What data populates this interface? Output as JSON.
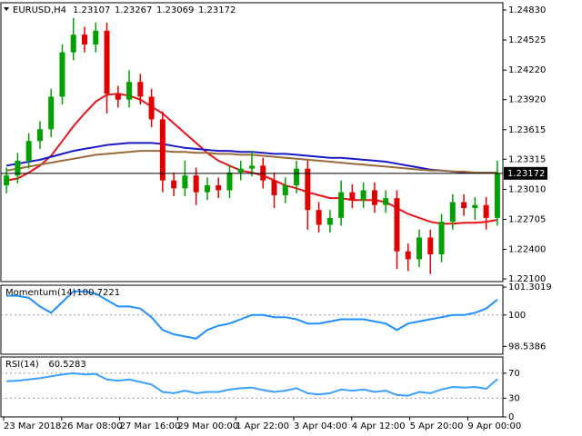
{
  "chart_data": [
    {
      "type": "candlestick",
      "symbol": "EURUSD,H4",
      "header_ohlc": [
        1.23107,
        1.23267,
        1.23069,
        1.23172
      ],
      "up_color": "#00a000",
      "down_color": "#e00000",
      "open": [
        1.2305,
        1.2315,
        1.233,
        1.235,
        1.2362,
        1.2395,
        1.244,
        1.2458,
        1.2448,
        1.2462,
        1.2398,
        1.2392,
        1.241,
        1.2395,
        1.2372,
        1.231,
        1.2302,
        1.2315,
        1.2298,
        1.2305,
        1.23,
        1.2318,
        1.2322,
        1.2325,
        1.231,
        1.2295,
        1.2305,
        1.2322,
        1.228,
        1.2265,
        1.2272,
        1.2298,
        1.229,
        1.23,
        1.2285,
        1.2292,
        1.2238,
        1.223,
        1.2252,
        1.2235,
        1.2268,
        1.2288,
        1.2282,
        1.2285,
        1.2272
      ],
      "high": [
        1.2323,
        1.2338,
        1.2358,
        1.237,
        1.2403,
        1.2448,
        1.2475,
        1.2466,
        1.247,
        1.247,
        1.2406,
        1.2422,
        1.2418,
        1.2403,
        1.238,
        1.2318,
        1.233,
        1.2323,
        1.2313,
        1.2313,
        1.2326,
        1.233,
        1.234,
        1.2333,
        1.2318,
        1.2313,
        1.233,
        1.233,
        1.2288,
        1.228,
        1.231,
        1.2306,
        1.2308,
        1.2308,
        1.23,
        1.23,
        1.2246,
        1.226,
        1.226,
        1.2276,
        1.2296,
        1.2296,
        1.2293,
        1.2293,
        1.233
      ],
      "low": [
        1.2297,
        1.2307,
        1.2322,
        1.2342,
        1.2354,
        1.2387,
        1.2432,
        1.244,
        1.244,
        1.2378,
        1.2384,
        1.2384,
        1.2387,
        1.2364,
        1.2298,
        1.2294,
        1.2294,
        1.2285,
        1.229,
        1.2292,
        1.2292,
        1.231,
        1.2314,
        1.2302,
        1.2282,
        1.2287,
        1.2297,
        1.226,
        1.2257,
        1.2257,
        1.2264,
        1.2282,
        1.2282,
        1.2277,
        1.2277,
        1.222,
        1.2218,
        1.2222,
        1.2215,
        1.2227,
        1.226,
        1.2274,
        1.227,
        1.226,
        1.2264
      ],
      "close": [
        1.2315,
        1.233,
        1.235,
        1.2362,
        1.2395,
        1.244,
        1.2458,
        1.2448,
        1.2462,
        1.2398,
        1.2392,
        1.241,
        1.2395,
        1.2372,
        1.231,
        1.2302,
        1.2315,
        1.2298,
        1.2305,
        1.23,
        1.2318,
        1.2322,
        1.2325,
        1.231,
        1.2295,
        1.2305,
        1.2322,
        1.228,
        1.2265,
        1.2272,
        1.2298,
        1.229,
        1.23,
        1.2285,
        1.2292,
        1.2238,
        1.223,
        1.2252,
        1.2235,
        1.2268,
        1.2288,
        1.2282,
        1.2285,
        1.2272,
        1.23172
      ],
      "series": [
        {
          "color": "#e8141a",
          "values": [
            1.231,
            1.2312,
            1.2318,
            1.2325,
            1.2335,
            1.235,
            1.2365,
            1.2378,
            1.239,
            1.2397,
            1.2398,
            1.2396,
            1.2392,
            1.2385,
            1.2378,
            1.2368,
            1.2358,
            1.2348,
            1.2338,
            1.233,
            1.2325,
            1.232,
            1.2318,
            1.2315,
            1.231,
            1.2305,
            1.2302,
            1.2298,
            1.2295,
            1.2292,
            1.2292,
            1.229,
            1.229,
            1.229,
            1.2288,
            1.2282,
            1.2276,
            1.2272,
            1.2268,
            1.2266,
            1.2266,
            1.2267,
            1.2267,
            1.2268,
            1.227
          ]
        },
        {
          "color": "#1a1ac8",
          "values": [
            1.2325,
            1.2327,
            1.2329,
            1.2331,
            1.2334,
            1.2337,
            1.234,
            1.2342,
            1.2344,
            1.2346,
            1.2347,
            1.2348,
            1.2348,
            1.2348,
            1.2347,
            1.2345,
            1.2343,
            1.2342,
            1.2341,
            1.234,
            1.234,
            1.2339,
            1.2339,
            1.2338,
            1.2337,
            1.2337,
            1.2336,
            1.2335,
            1.2334,
            1.2333,
            1.2333,
            1.2332,
            1.2331,
            1.233,
            1.2329,
            1.2327,
            1.2325,
            1.2323,
            1.2321,
            1.232,
            1.2319,
            1.2318,
            1.2318,
            1.2318,
            1.2318
          ]
        },
        {
          "color": "#9a6a3a",
          "values": [
            1.232,
            1.2322,
            1.2324,
            1.2326,
            1.2328,
            1.233,
            1.2332,
            1.2334,
            1.2336,
            1.2337,
            1.2338,
            1.2339,
            1.234,
            1.234,
            1.234,
            1.2339,
            1.2339,
            1.2338,
            1.2338,
            1.2337,
            1.2337,
            1.2336,
            1.2336,
            1.2335,
            1.2334,
            1.2333,
            1.2332,
            1.2331,
            1.233,
            1.2329,
            1.2328,
            1.2327,
            1.2326,
            1.2325,
            1.2324,
            1.2323,
            1.2322,
            1.2321,
            1.232,
            1.232,
            1.2319,
            1.2319,
            1.2318,
            1.2318,
            1.2318
          ]
        }
      ],
      "last_price": 1.23172,
      "ylim": [
        1.22073,
        1.24904
      ],
      "yticks": [
        {
          "value": 1.2483,
          "label": "1.24830"
        },
        1.24525,
        {
          "value": 1.2422,
          "label": "1.24220"
        },
        {
          "value": 1.2392,
          "label": "1.23920"
        },
        1.23615,
        1.23315,
        {
          "value": 1.2301,
          "label": "1.23010"
        },
        1.22705,
        {
          "value": 1.224,
          "label": "1.22400"
        },
        {
          "value": 1.221,
          "label": "1.22100"
        }
      ],
      "time_labels": [
        "23 Mar 2018",
        "26 Mar 08:00",
        "27 Mar 16:00",
        "29 Mar 00:00",
        "1 Apr 22:00",
        "3 Apr 04:00",
        "4 Apr 12:00",
        "5 Apr 20:00",
        "9 Apr 00:00"
      ]
    },
    {
      "type": "line",
      "title": "Momentum(14)",
      "color": "#1e90ff",
      "values": [
        100.9,
        100.9,
        100.8,
        100.4,
        100.1,
        100.6,
        101.1,
        101.1,
        101.0,
        100.7,
        100.4,
        100.4,
        100.3,
        99.9,
        99.3,
        99.1,
        99.0,
        98.9,
        99.3,
        99.5,
        99.6,
        99.8,
        100.0,
        100.0,
        99.9,
        99.9,
        99.8,
        99.6,
        99.6,
        99.7,
        99.8,
        99.8,
        99.8,
        99.7,
        99.6,
        99.3,
        99.6,
        99.7,
        99.8,
        99.9,
        100.0,
        100.0,
        100.1,
        100.3,
        100.7221
      ],
      "ylim": [
        98.17,
        101.39
      ],
      "yticks": [
        101.3019,
        100,
        98.5386
      ],
      "level_lines": [
        100
      ]
    },
    {
      "type": "line",
      "title": "RSI(14)",
      "color": "#3aa0ff",
      "values": [
        57,
        58,
        60,
        62,
        65,
        68,
        70,
        68,
        69,
        60,
        58,
        60,
        56,
        52,
        40,
        38,
        42,
        38,
        40,
        40,
        44,
        46,
        47,
        43,
        40,
        42,
        46,
        38,
        36,
        38,
        44,
        42,
        44,
        40,
        42,
        35,
        34,
        40,
        38,
        44,
        48,
        47,
        48,
        45,
        60.5283
      ],
      "ylim": [
        0,
        96
      ],
      "yticks": [
        70,
        30,
        0
      ],
      "level_lines": [
        70,
        30
      ]
    }
  ]
}
